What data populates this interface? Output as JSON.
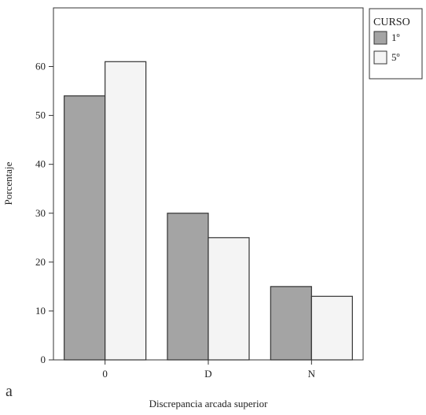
{
  "chart_data": {
    "type": "bar",
    "categories": [
      "0",
      "D",
      "N"
    ],
    "series": [
      {
        "name": "1º",
        "values": [
          54,
          30,
          15
        ],
        "color": "#a4a4a4"
      },
      {
        "name": "5º",
        "values": [
          61,
          25,
          13
        ],
        "color": "#f4f4f4"
      }
    ],
    "xlabel": "Discrepancia arcada superior",
    "ylabel": "Porcentaje",
    "ylim": [
      0,
      72
    ],
    "yticks": [
      0,
      10,
      20,
      30,
      40,
      50,
      60
    ],
    "grid": false,
    "legend": {
      "title": "CURSO",
      "placement": "top-right, outside plot"
    },
    "panel_label": "a"
  }
}
